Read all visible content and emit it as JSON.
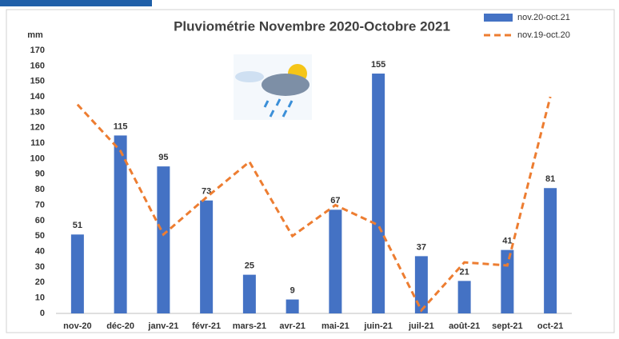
{
  "chart_data": {
    "type": "bar",
    "title": "Pluviométrie Novembre 2020-Octobre 2021",
    "y_label": "mm",
    "categories": [
      "nov-20",
      "déc-20",
      "janv-21",
      "févr-21",
      "mars-21",
      "avr-21",
      "mai-21",
      "juin-21",
      "juil-21",
      "août-21",
      "sept-21",
      "oct-21"
    ],
    "series": [
      {
        "name": "nov.20-oct.21",
        "type": "bar",
        "color": "#4472c4",
        "values": [
          51,
          115,
          95,
          73,
          25,
          9,
          67,
          155,
          37,
          21,
          41,
          81
        ],
        "data_labels": true
      },
      {
        "name": "nov.19-oct.20",
        "type": "line",
        "dashed": true,
        "color": "#ed7d31",
        "values": [
          135,
          105,
          51,
          75,
          98,
          50,
          70,
          57,
          2,
          33,
          31,
          140
        ]
      }
    ],
    "ylim": [
      0,
      170
    ],
    "yticks": [
      0,
      10,
      20,
      30,
      40,
      50,
      60,
      70,
      80,
      90,
      100,
      110,
      120,
      130,
      140,
      150,
      160,
      170
    ],
    "grid": false,
    "legend": "top-right"
  }
}
